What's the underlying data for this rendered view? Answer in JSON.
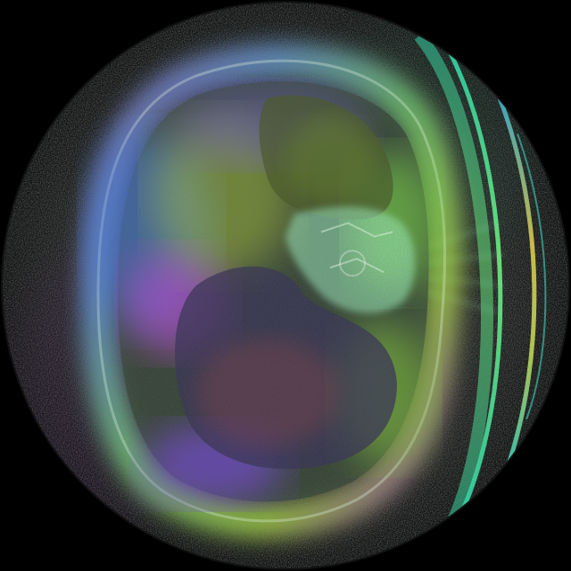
{
  "image": {
    "kind": "false-color CT cross-section",
    "subject": "chest scan",
    "colors": {
      "background": "#000000",
      "field_dark": "#1a1d1c",
      "ring_teal": "#2fd6a8",
      "ring_green": "#6cf07a",
      "ring_yellow": "#e6d34a",
      "hue_magenta": "#c44ad8",
      "hue_violet": "#7a4be0",
      "hue_blue": "#4a7ff0",
      "hue_green": "#7fd43a",
      "hue_cyan": "#3fe0c8",
      "mediastinum": "#9ef0c0"
    }
  }
}
